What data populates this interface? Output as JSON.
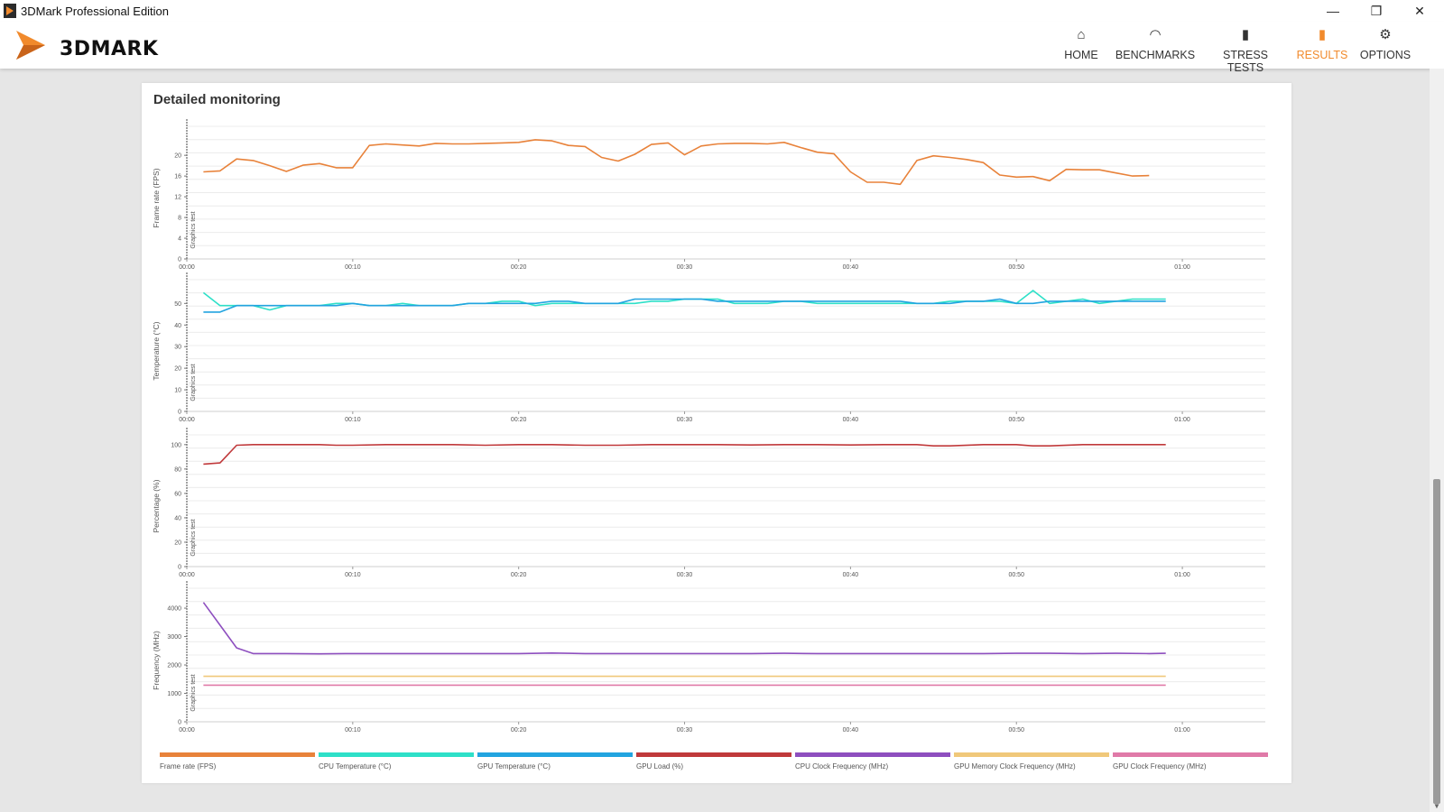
{
  "window": {
    "title": "3DMark Professional Edition",
    "minimize_glyph": "—",
    "restore_glyph": "❐",
    "close_glyph": "✕"
  },
  "header": {
    "logo_text": "3DMARK",
    "nav": [
      {
        "label": "HOME",
        "icon": "home-icon",
        "glyph": "⌂"
      },
      {
        "label": "BENCHMARKS",
        "icon": "gauge-icon",
        "glyph": "◠"
      },
      {
        "label": "STRESS TESTS",
        "icon": "bar-chart-icon",
        "glyph": "▮"
      },
      {
        "label": "RESULTS",
        "icon": "results-icon",
        "glyph": "▮"
      },
      {
        "label": "OPTIONS",
        "icon": "gear-icon",
        "glyph": "⚙"
      }
    ],
    "active_nav": "RESULTS",
    "accent_color": "#f18a2c"
  },
  "section": {
    "title": "Detailed monitoring"
  },
  "legend": [
    {
      "label": "Frame rate (FPS)",
      "color": "#e8823a"
    },
    {
      "label": "CPU Temperature (°C)",
      "color": "#2ee0c8"
    },
    {
      "label": "GPU Temperature (°C)",
      "color": "#22a4e0"
    },
    {
      "label": "GPU Load (%)",
      "color": "#c0393b"
    },
    {
      "label": "CPU Clock Frequency (MHz)",
      "color": "#8e4fbf"
    },
    {
      "label": "GPU Memory Clock Frequency (MHz)",
      "color": "#f0c87a"
    },
    {
      "label": "GPU Clock Frequency (MHz)",
      "color": "#e07aa8"
    }
  ],
  "chart_data": [
    {
      "type": "line",
      "ylabel": "Frame rate (FPS)",
      "band_label": "Graphics test",
      "yticks": [
        0,
        4,
        8,
        12,
        16,
        20
      ],
      "ylim": [
        0,
        25.6
      ],
      "xticks": [
        "00:00",
        "00:10",
        "00:20",
        "00:30",
        "00:40",
        "00:50",
        "01:00"
      ],
      "xlim": [
        0,
        65
      ],
      "series": [
        {
          "name": "Frame rate (FPS)",
          "color": "#e8823a",
          "x": [
            1,
            2,
            3,
            4,
            5,
            6,
            7,
            8,
            9,
            10,
            11,
            12,
            13,
            14,
            15,
            16,
            17,
            18,
            19,
            20,
            21,
            22,
            23,
            24,
            25,
            26,
            27,
            28,
            29,
            30,
            31,
            32,
            33,
            34,
            35,
            36,
            37,
            38,
            39,
            40,
            41,
            42,
            43,
            44,
            45,
            46,
            47,
            48,
            49,
            50,
            51,
            52,
            53,
            54,
            55,
            56,
            57,
            58
          ],
          "values": [
            16.8,
            17,
            19.3,
            19,
            18,
            16.9,
            18.1,
            18.4,
            17.6,
            17.6,
            21.9,
            22.2,
            22,
            21.8,
            22.3,
            22.2,
            22.2,
            22.3,
            22.4,
            22.5,
            23,
            22.8,
            21.9,
            21.7,
            19.6,
            18.9,
            20.2,
            22.1,
            22.4,
            20.1,
            21.8,
            22.2,
            22.3,
            22.3,
            22.2,
            22.5,
            21.5,
            20.6,
            20.3,
            16.8,
            14.8,
            14.8,
            14.4,
            19,
            19.9,
            19.6,
            19.2,
            18.6,
            16.2,
            15.8,
            15.9,
            15.1,
            17.3,
            17.2,
            17.2,
            16.6,
            16,
            16.1
          ]
        }
      ]
    },
    {
      "type": "line",
      "ylabel": "Temperature (°C)",
      "band_label": "Graphics test",
      "yticks": [
        0,
        10,
        20,
        30,
        40,
        50
      ],
      "ylim": [
        0,
        61
      ],
      "xticks": [
        "00:00",
        "00:10",
        "00:20",
        "00:30",
        "00:40",
        "00:50",
        "01:00"
      ],
      "xlim": [
        0,
        65
      ],
      "series": [
        {
          "name": "CPU Temperature (°C)",
          "color": "#2ee0c8",
          "x": [
            1,
            2,
            3,
            4,
            5,
            6,
            7,
            8,
            9,
            10,
            11,
            12,
            13,
            14,
            15,
            16,
            17,
            18,
            19,
            20,
            21,
            22,
            23,
            24,
            25,
            26,
            27,
            28,
            29,
            30,
            31,
            32,
            33,
            34,
            35,
            36,
            37,
            38,
            39,
            40,
            41,
            42,
            43,
            44,
            45,
            46,
            47,
            48,
            49,
            50,
            51,
            52,
            53,
            54,
            55,
            56,
            57,
            58,
            59
          ],
          "values": [
            55,
            49,
            49,
            49,
            47,
            49,
            49,
            49,
            50,
            50,
            49,
            49,
            50,
            49,
            49,
            49,
            50,
            50,
            51,
            51,
            49,
            50,
            50,
            50,
            50,
            50,
            50,
            51,
            51,
            52,
            52,
            52,
            50,
            50,
            50,
            51,
            51,
            50,
            50,
            50,
            50,
            50,
            50,
            50,
            50,
            51,
            51,
            51,
            51,
            50,
            56,
            50,
            51,
            52,
            50,
            51,
            52,
            52,
            52
          ]
        },
        {
          "name": "GPU Temperature (°C)",
          "color": "#22a4e0",
          "x": [
            1,
            2,
            3,
            4,
            5,
            6,
            7,
            8,
            9,
            10,
            11,
            12,
            13,
            14,
            15,
            16,
            17,
            18,
            19,
            20,
            21,
            22,
            23,
            24,
            25,
            26,
            27,
            28,
            29,
            30,
            31,
            32,
            33,
            34,
            35,
            36,
            37,
            38,
            39,
            40,
            41,
            42,
            43,
            44,
            45,
            46,
            47,
            48,
            49,
            50,
            51,
            52,
            53,
            54,
            55,
            56,
            57,
            58,
            59
          ],
          "values": [
            46,
            46,
            49,
            49,
            49,
            49,
            49,
            49,
            49,
            50,
            49,
            49,
            49,
            49,
            49,
            49,
            50,
            50,
            50,
            50,
            50,
            51,
            51,
            50,
            50,
            50,
            52,
            52,
            52,
            52,
            52,
            51,
            51,
            51,
            51,
            51,
            51,
            51,
            51,
            51,
            51,
            51,
            51,
            50,
            50,
            50,
            51,
            51,
            52,
            50,
            50,
            51,
            51,
            51,
            51,
            51,
            51,
            51,
            51
          ]
        }
      ]
    },
    {
      "type": "line",
      "ylabel": "Percentage (%)",
      "band_label": "Graphics test",
      "yticks": [
        0,
        20,
        40,
        60,
        80,
        100
      ],
      "ylim": [
        0,
        108
      ],
      "xticks": [
        "00:00",
        "00:10",
        "00:20",
        "00:30",
        "00:40",
        "00:50",
        "01:00"
      ],
      "xlim": [
        0,
        65
      ],
      "series": [
        {
          "name": "GPU Load (%)",
          "color": "#c0393b",
          "x": [
            1,
            2,
            3,
            4,
            6,
            8,
            9,
            10,
            12,
            14,
            16,
            18,
            20,
            22,
            24,
            26,
            28,
            30,
            32,
            34,
            36,
            38,
            40,
            42,
            44,
            45,
            46,
            48,
            50,
            51,
            52,
            54,
            56,
            58,
            59
          ],
          "values": [
            84,
            85,
            99.5,
            100,
            100,
            100,
            99.5,
            99.5,
            100,
            100,
            100,
            99.5,
            100,
            100,
            99.5,
            99.5,
            100,
            100,
            100,
            99.7,
            100,
            100,
            99.7,
            100,
            100,
            99,
            99,
            100,
            100,
            99,
            99,
            100,
            100,
            100,
            100
          ]
        }
      ]
    },
    {
      "type": "line",
      "ylabel": "Frequency (MHz)",
      "band_label": "Graphics test",
      "yticks": [
        0,
        1000,
        2000,
        3000,
        4000
      ],
      "ylim": [
        0,
        4700
      ],
      "xticks": [
        "00:00",
        "00:10",
        "00:20",
        "00:30",
        "00:40",
        "00:50",
        "01:00"
      ],
      "xlim": [
        0,
        65
      ],
      "series": [
        {
          "name": "CPU Clock Frequency (MHz)",
          "color": "#8e4fbf",
          "x": [
            1,
            2,
            3,
            4,
            6,
            8,
            10,
            12,
            14,
            16,
            18,
            20,
            22,
            24,
            26,
            28,
            30,
            32,
            34,
            36,
            38,
            40,
            42,
            44,
            46,
            48,
            50,
            52,
            54,
            56,
            58,
            59
          ],
          "values": [
            4200,
            3400,
            2600,
            2400,
            2400,
            2390,
            2400,
            2400,
            2400,
            2400,
            2400,
            2400,
            2420,
            2400,
            2400,
            2400,
            2400,
            2400,
            2400,
            2410,
            2400,
            2400,
            2400,
            2400,
            2400,
            2400,
            2410,
            2410,
            2400,
            2410,
            2400,
            2410
          ]
        },
        {
          "name": "GPU Memory Clock Frequency (MHz)",
          "color": "#f0c87a",
          "x": [
            1,
            59
          ],
          "values": [
            1600,
            1600
          ]
        },
        {
          "name": "GPU Clock Frequency (MHz)",
          "color": "#e07aa8",
          "x": [
            1,
            59
          ],
          "values": [
            1290,
            1290
          ]
        }
      ]
    }
  ]
}
